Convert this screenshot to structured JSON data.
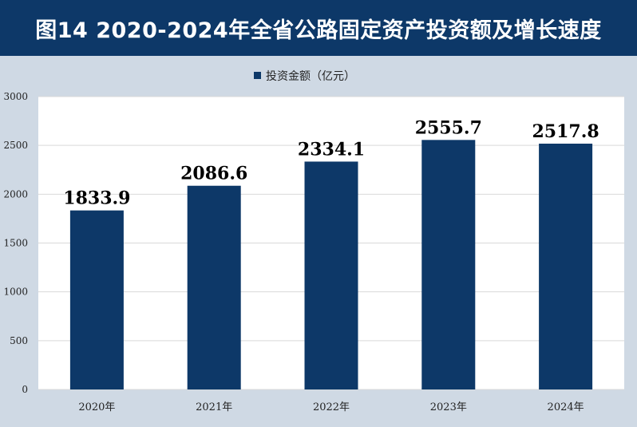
{
  "header": {
    "title": "图14  2020-2024年全省公路固定资产投资额及增长速度"
  },
  "colors": {
    "bar": "#0d3868",
    "plot_bg": "#ffffff",
    "page_bg": "#cfd9e4",
    "grid": "#d9d9d9"
  },
  "chart_data": {
    "type": "bar",
    "title": "图14  2020-2024年全省公路固定资产投资额及增长速度",
    "categories": [
      "2020年",
      "2021年",
      "2022年",
      "2023年",
      "2024年"
    ],
    "series": [
      {
        "name": "投资金额（亿元）",
        "values": [
          1833.9,
          2086.6,
          2334.1,
          2555.7,
          2517.8
        ]
      }
    ],
    "data_labels": [
      "1833.9",
      "2086.6",
      "2334.1",
      "2555.7",
      "2517.8"
    ],
    "ylim": [
      0,
      3000
    ],
    "yticks": [
      0,
      500,
      1000,
      1500,
      2000,
      2500,
      3000
    ],
    "grid": true,
    "legend_position": "top-center"
  }
}
